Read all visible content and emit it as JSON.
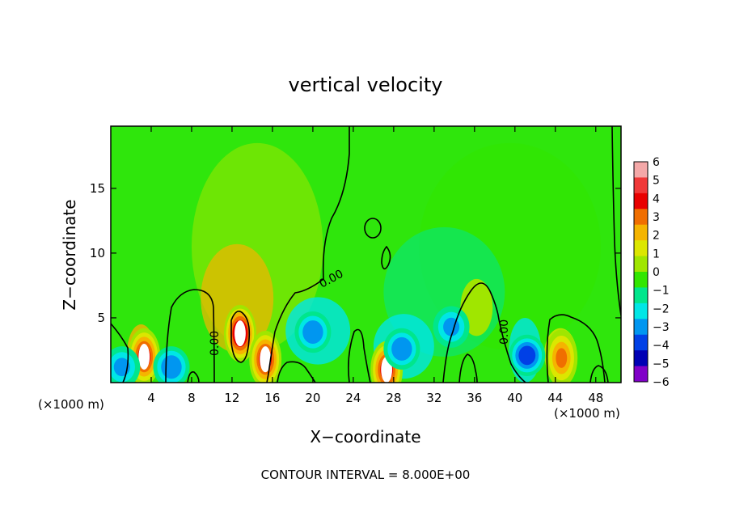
{
  "chart_data": {
    "type": "heatmap",
    "title": "vertical velocity",
    "xlabel": "X−coordinate",
    "ylabel": "Z−coordinate",
    "x_unit_left": "(×1000 m)",
    "x_unit_right": "(×1000 m)",
    "xlim": [
      0,
      50.5
    ],
    "ylim": [
      0,
      19.8
    ],
    "x_ticks": [
      4,
      8,
      12,
      16,
      20,
      24,
      28,
      32,
      36,
      40,
      44,
      48
    ],
    "y_ticks": [
      5,
      10,
      15
    ],
    "footer": "CONTOUR INTERVAL = 8.000E+00",
    "contour_label": "0.00",
    "colorbar": {
      "min": -6,
      "max": 6,
      "ticks": [
        6,
        5,
        4,
        3,
        2,
        1,
        0,
        -1,
        -2,
        -3,
        -4,
        -5,
        -6
      ],
      "tick_labels": [
        "6",
        "5",
        "4",
        "3",
        "2",
        "1",
        "0",
        "−1",
        "−2",
        "−3",
        "−4",
        "−5",
        "−6"
      ],
      "colors": [
        "#f4a8a8",
        "#f03838",
        "#e80000",
        "#f06e00",
        "#f5b400",
        "#dce600",
        "#a0e600",
        "#32e600",
        "#00e68c",
        "#00e6e6",
        "#0096f0",
        "#0040e6",
        "#0000b4",
        "#8000c8"
      ]
    },
    "features": [
      {
        "kind": "updraft",
        "x": 12.8,
        "z": 3.8,
        "value": 6.5
      },
      {
        "kind": "updraft",
        "x": 15.3,
        "z": 1.8,
        "value": 6
      },
      {
        "kind": "updraft",
        "x": 3.3,
        "z": 2.0,
        "value": 6
      },
      {
        "kind": "updraft",
        "x": 27.3,
        "z": 1.0,
        "value": 6
      },
      {
        "kind": "updraft",
        "x": 44.6,
        "z": 1.9,
        "value": 3.5
      },
      {
        "kind": "updraft",
        "x": 36.2,
        "z": 5.8,
        "value": 1
      },
      {
        "kind": "downdraft",
        "x": 20.0,
        "z": 3.9,
        "value": -3.5
      },
      {
        "kind": "downdraft",
        "x": 28.8,
        "z": 2.6,
        "value": -3.5
      },
      {
        "kind": "downdraft",
        "x": 41.2,
        "z": 2.1,
        "value": -4.5
      },
      {
        "kind": "downdraft",
        "x": 6.0,
        "z": 1.2,
        "value": -3.5
      },
      {
        "kind": "downdraft",
        "x": 1.1,
        "z": 1.2,
        "value": -3
      },
      {
        "kind": "downdraft",
        "x": 33.7,
        "z": 4.3,
        "value": -3
      }
    ]
  }
}
